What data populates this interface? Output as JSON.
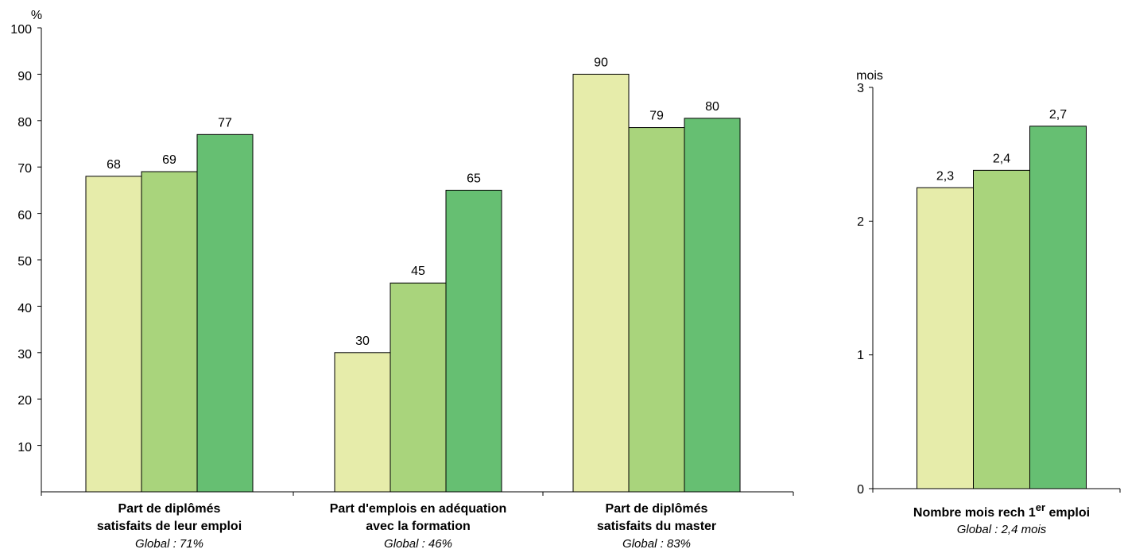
{
  "colors": {
    "series": [
      "#e6ecaa",
      "#a9d47c",
      "#66bf72"
    ],
    "stroke": "#000000"
  },
  "chart_data": [
    {
      "type": "bar",
      "ylabel": "%",
      "ylim": [
        0,
        100
      ],
      "yticks": [
        "100",
        "90",
        "80",
        "70",
        "60",
        "50",
        "40",
        "30",
        "20",
        "10"
      ],
      "categories": [
        {
          "line1": "Part de diplômés",
          "line2": "satisfaits de leur emploi",
          "note": "Global : 71%",
          "values": [
            68,
            69,
            77
          ],
          "labels": [
            "68",
            "69",
            "77"
          ]
        },
        {
          "line1": "Part d'emplois en adéquation",
          "line2": "avec la formation",
          "note": "Global : 46%",
          "values": [
            30,
            45,
            65
          ],
          "labels": [
            "30",
            "45",
            "65"
          ]
        },
        {
          "line1": "Part de diplômés",
          "line2": "satisfaits du master",
          "note": "Global : 83%",
          "values": [
            90,
            78.5,
            80.5
          ],
          "labels": [
            "90",
            "79",
            "80"
          ]
        }
      ]
    },
    {
      "type": "bar",
      "ylabel": "mois",
      "ylim": [
        0,
        3
      ],
      "yticks": [
        "3",
        "2",
        "1",
        "0"
      ],
      "categories": [
        {
          "line1": "Nombre mois rech 1",
          "sup": "er",
          "line1_end": " emploi",
          "note": "Global : 2,4 mois",
          "values": [
            2.25,
            2.38,
            2.71
          ],
          "labels": [
            "2,3",
            "2,4",
            "2,7"
          ]
        }
      ]
    }
  ]
}
